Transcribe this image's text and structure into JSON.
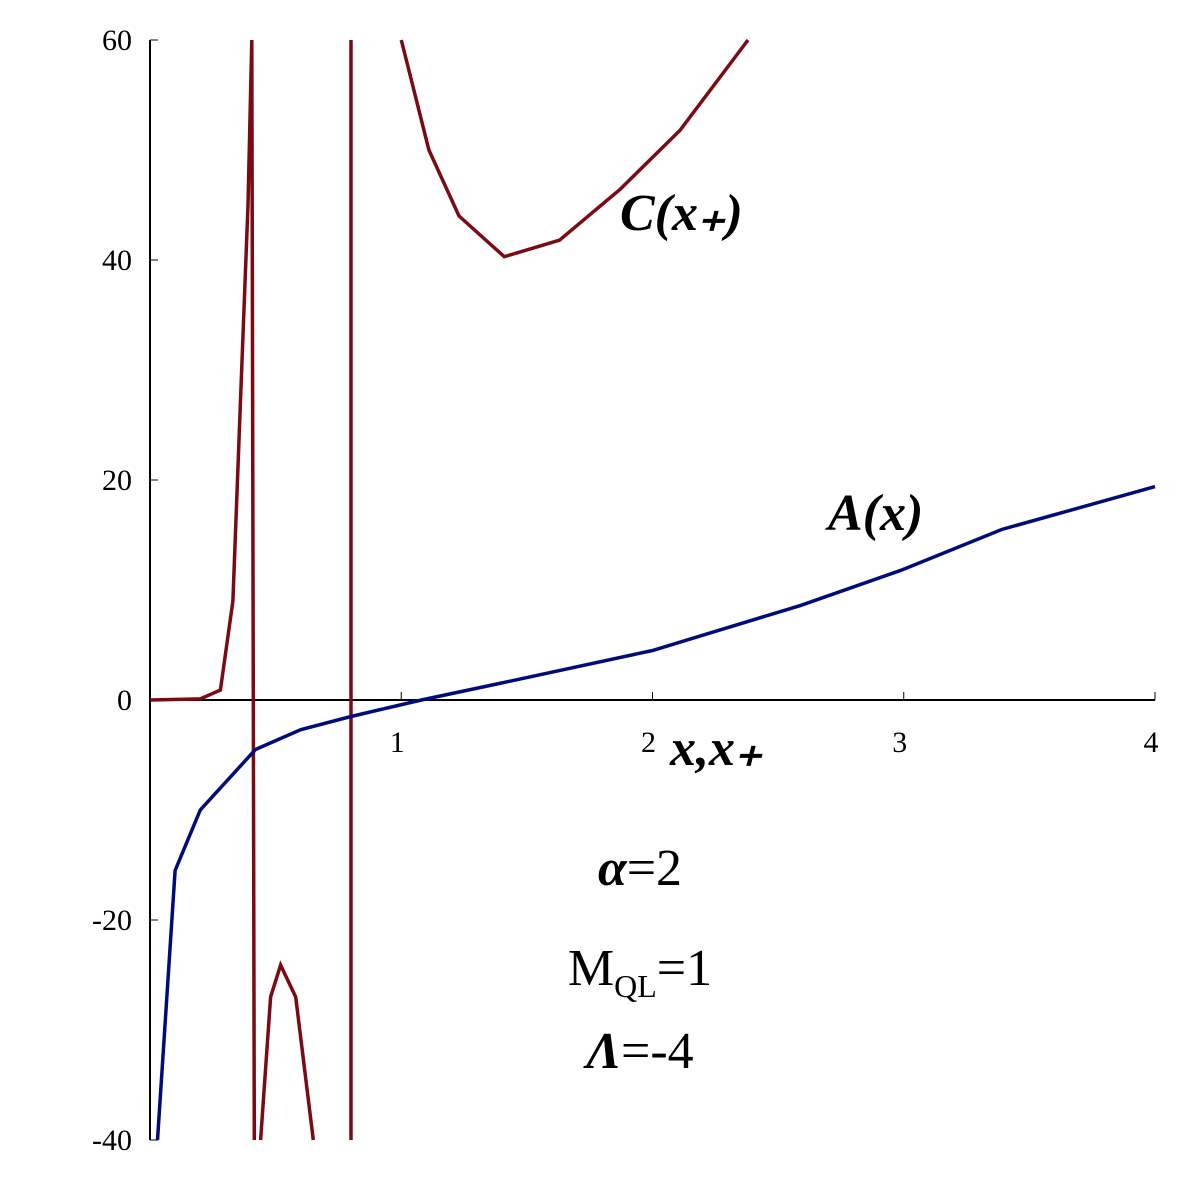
{
  "chart_data": {
    "type": "line",
    "xlim": [
      0,
      4
    ],
    "ylim": [
      -40,
      60
    ],
    "xticks": [
      1,
      2,
      3,
      4
    ],
    "yticks": [
      60,
      40,
      20,
      0,
      -20,
      -40
    ],
    "xlabel": "x,x₊",
    "series": [
      {
        "name": "C(x₊)",
        "color": "#7b0a12",
        "x": [
          0,
          0.2,
          0.28,
          0.33,
          0.36,
          0.39,
          0.405,
          0.415,
          0.42,
          0.44,
          0.48,
          0.52,
          0.58,
          0.65,
          0.7,
          0.8,
          0.8,
          0.81,
          1.0,
          1.11,
          1.23,
          1.41,
          1.63,
          1.87,
          2.11,
          2.38
        ],
        "values": [
          0,
          0.1,
          0.9,
          9,
          27,
          45,
          60,
          -40,
          null,
          -40,
          -27,
          -24.1,
          -27,
          -40,
          null,
          -40,
          60,
          null,
          60,
          50,
          44,
          40.3,
          41.8,
          46.4,
          51.8,
          60
        ]
      },
      {
        "name": "A(x)",
        "color": "#000c7c",
        "x": [
          0.03,
          0.1,
          0.2,
          0.42,
          0.6,
          0.8,
          1.08,
          1.39,
          2.0,
          2.59,
          2.99,
          3.39,
          4.0
        ],
        "values": [
          -40,
          -15.5,
          -10,
          -4.5,
          -2.7,
          -1.5,
          0,
          1.5,
          4.5,
          8.6,
          11.8,
          15.5,
          19.4
        ]
      }
    ],
    "annotations": [
      [
        "α",
        "=2"
      ],
      [
        "M",
        "QL",
        "=1"
      ],
      [
        "Λ",
        "=-4"
      ]
    ]
  }
}
